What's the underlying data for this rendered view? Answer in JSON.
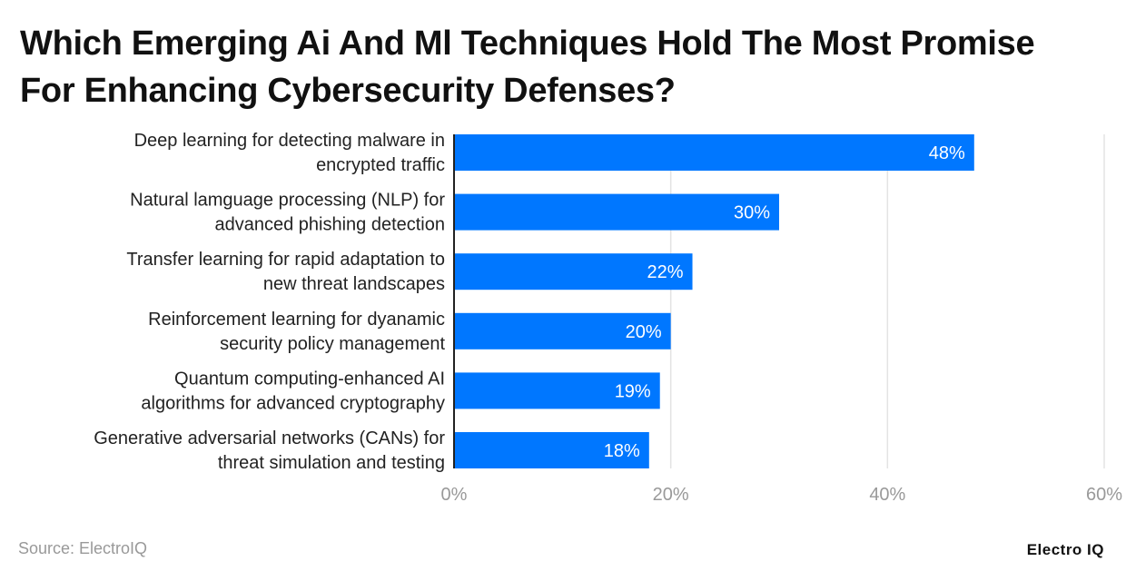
{
  "chart_data": {
    "type": "bar",
    "orientation": "horizontal",
    "title": "Which Emerging Ai And Ml Techniques Hold The Most Promise For Enhancing Cybersecurity Defenses?",
    "categories": [
      [
        "Deep learning for detecting malware in",
        "encrypted traffic"
      ],
      [
        "Natural lamguage processing (NLP) for",
        "advanced phishing detection"
      ],
      [
        "Transfer learning for rapid adaptation to",
        "new threat landscapes"
      ],
      [
        "Reinforcement learning for dyanamic",
        "security policy management"
      ],
      [
        "Quantum computing-enhanced AI",
        "algorithms for advanced cryptography"
      ],
      [
        "Generative adversarial networks (CANs) for",
        "threat simulation and testing"
      ]
    ],
    "values": [
      48,
      30,
      22,
      20,
      19,
      18
    ],
    "data_labels": [
      "48%",
      "30%",
      "22%",
      "20%",
      "19%",
      "18%"
    ],
    "xlim": [
      0,
      60
    ],
    "x_ticks": [
      0,
      20,
      40,
      60
    ],
    "x_tick_labels": [
      "0%",
      "20%",
      "40%",
      "60%"
    ],
    "grid": true,
    "bar_color": "#0077FF"
  },
  "footer": {
    "source": "Source: ElectroIQ",
    "logo": "Electro IQ"
  }
}
